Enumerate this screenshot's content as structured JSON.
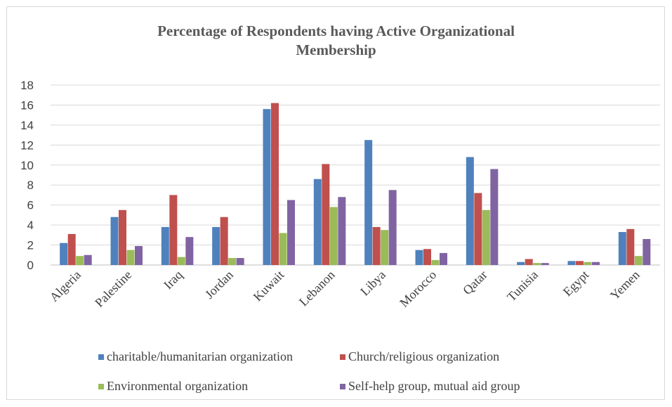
{
  "chart_data": {
    "type": "bar",
    "title_line1": "Percentage of Respondents having Active Organizational",
    "title_line2": "Membership",
    "categories": [
      "Algeria",
      "Palestine",
      "Iraq",
      "Jordan",
      "Kuwait",
      "Lebanon",
      "Libya",
      "Morocco",
      "Qatar",
      "Tunisia",
      "Egypt",
      "Yemen"
    ],
    "series": [
      {
        "name": "charitable/humanitarian organization",
        "color": "#4f81bd",
        "values": [
          2.2,
          4.8,
          3.8,
          3.8,
          15.6,
          8.6,
          12.5,
          1.5,
          10.8,
          0.3,
          0.4,
          3.3
        ]
      },
      {
        "name": "Church/religious organization",
        "color": "#c0504d",
        "values": [
          3.1,
          5.5,
          7.0,
          4.8,
          16.2,
          10.1,
          3.8,
          1.6,
          7.2,
          0.6,
          0.4,
          3.6
        ]
      },
      {
        "name": "Environmental organization",
        "color": "#9bbb59",
        "values": [
          0.9,
          1.5,
          0.8,
          0.7,
          3.2,
          5.8,
          3.5,
          0.5,
          5.5,
          0.2,
          0.3,
          0.9
        ]
      },
      {
        "name": "Self-help group, mutual aid group",
        "color": "#8064a2",
        "values": [
          1.0,
          1.9,
          2.8,
          0.7,
          6.5,
          6.8,
          7.5,
          1.2,
          9.6,
          0.2,
          0.3,
          2.6
        ]
      }
    ],
    "ylim": [
      0,
      18
    ],
    "yticks": [
      0,
      2,
      4,
      6,
      8,
      10,
      12,
      14,
      16,
      18
    ],
    "grid": true,
    "legend_position": "bottom"
  }
}
